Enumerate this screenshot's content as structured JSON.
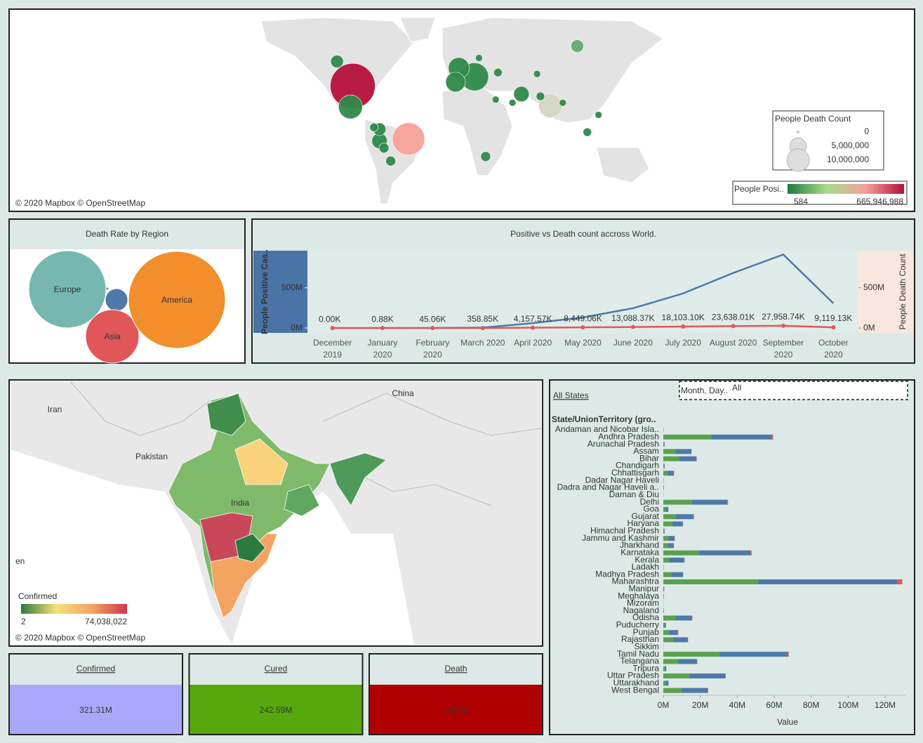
{
  "chart_data": [
    {
      "type": "bubble-map",
      "attribution": "© 2020 Mapbox © OpenStreetMap",
      "size_legend_title": "People Death Count",
      "size_ticks": [
        0,
        {
          "value": 5000000,
          "label": "5,000,000"
        },
        {
          "value": 10000000,
          "label": "10,000,000"
        }
      ],
      "color_legend_title": "People Posi..",
      "color_range": [
        584,
        {
          "value": 665946988,
          "label": "665,946,988"
        }
      ],
      "color_scale": [
        "#1e7a3c",
        "#a6dc8c",
        "#f4a09a",
        "#b5103a"
      ],
      "x": [
        -98,
        -48,
        11,
        79,
        -100,
        -3,
        -6,
        -74,
        53,
        -74,
        -112,
        103,
        -70,
        21,
        -64,
        32,
        112,
        70,
        -79,
        30,
        45,
        90,
        122,
        67,
        15
      ],
      "y": [
        39,
        -13,
        46,
        21,
        20,
        52,
        42,
        -15,
        32,
        -3,
        56,
        64,
        -22,
        -30,
        -34,
        49,
        -6,
        30,
        -1,
        27,
        24,
        24,
        12,
        48,
        58
      ],
      "values": [
        8900000,
        4420000,
        3280000,
        2300000,
        2300000,
        1740000,
        1500000,
        864000,
        864000,
        538000,
        538000,
        538000,
        290000,
        290000,
        290000,
        194000,
        194000,
        194000,
        194000,
        117000,
        117000,
        117000,
        117000,
        117000,
        117000
      ],
      "colors": [
        "#b5103a",
        "#f8a29a",
        "#2f8a4a",
        "#d6d6c6",
        "#2f8a4a",
        "#2f8a4a",
        "#2f8a4a",
        "#2f8a4a",
        "#2f8a4a",
        "#2f8a4a",
        "#2f8a4a",
        "#5fae6a",
        "#2f8a4a",
        "#2f8a4a",
        "#2f8a4a",
        "#2f8a4a",
        "#2f8a4a",
        "#2f8a4a",
        "#2f8a4a",
        "#2f8a4a",
        "#2f8a4a",
        "#2f8a4a",
        "#2f8a4a",
        "#2f8a4a",
        "#2f8a4a"
      ]
    },
    {
      "type": "packed-bubble",
      "title": "Death Rate by Region",
      "categories": [
        "Europe",
        null,
        null,
        "Asia",
        "America"
      ],
      "values": [
        30.5,
        2.6,
        0.04,
        14.6,
        48
      ],
      "colors": [
        "#76b7b2",
        "#4e79a7",
        "#59a14f",
        "#e15759",
        "#f28e2b"
      ]
    },
    {
      "type": "line",
      "title": "Positive vs Death count accross World.",
      "categories": [
        "December 2019",
        "January 2020",
        "February 2020",
        "March 2020",
        "April 2020",
        "May 2020",
        "June 2020",
        "July 2020",
        "August 2020",
        "September 2020",
        "October 2020"
      ],
      "ylim": [
        -60000000,
        960000000
      ],
      "yticks": [
        {
          "value": 0,
          "label": "0M"
        },
        {
          "value": 500000000,
          "label": "500M"
        }
      ],
      "y2lim": [
        -60000000,
        960000000
      ],
      "y2ticks": [
        {
          "value": 0,
          "label": "0M"
        },
        {
          "value": 500000000,
          "label": "500M"
        }
      ],
      "ylabel": "People Positive Cas..",
      "y2label": "People Death Count",
      "series": [
        {
          "color": "#4e79a7",
          "values": [
            0,
            10000,
            500000,
            5000000,
            61000000,
            132000000,
            246000000,
            430000000,
            684000000,
            912000000,
            307000000
          ]
        },
        {
          "color": "#e15759",
          "axis": "y2",
          "values": [
            0,
            880,
            45060,
            358850,
            4157570,
            8449060,
            13088370,
            18103100,
            23638010,
            27958740,
            9119130
          ],
          "value_labels": [
            "0.00K",
            "0.88K",
            "45.06K",
            "358.85K",
            "4,157.57K",
            "8,449.06K",
            "13,088.37K",
            "18,103.10K",
            "23,638.01K",
            "27,958.74K",
            "9,119.13K"
          ]
        }
      ]
    },
    {
      "type": "choropleth",
      "attribution": "© 2020 Mapbox © OpenStreetMap",
      "legend_title": "Confirmed",
      "color_range": [
        2,
        {
          "value": 74038022,
          "label": "74,038,022"
        }
      ],
      "color_scale": [
        "#2c7a3e",
        "#f9e07a",
        "#f4a460",
        "#d0364f"
      ],
      "places": [
        "Iran",
        "Pakistan",
        "China",
        "India",
        "en"
      ]
    },
    {
      "type": "stacked-bar",
      "title": "All States",
      "filter_label": "Month, Day..",
      "filter_value": "All",
      "ylabel": "State/UnionTerritory (gro..",
      "xlabel": "Value",
      "xlim": [
        0,
        131
      ],
      "xticks": [
        {
          "value": 0,
          "label": "0M"
        },
        {
          "value": 20,
          "label": "20M"
        },
        {
          "value": 40,
          "label": "40M"
        },
        {
          "value": 60,
          "label": "60M"
        },
        {
          "value": 80,
          "label": "80M"
        },
        {
          "value": 100,
          "label": "100M"
        },
        {
          "value": 120,
          "label": "120M"
        }
      ],
      "categories": [
        "Andaman and Nicobar Isla..",
        "Andhra Pradesh",
        "Arunachal Pradesh",
        "Assam",
        "Bihar",
        "Chandigarh",
        "Chhattisgarh",
        "Dadar Nagar Haveli",
        "Dadra and Nagar Haveli a..",
        "Daman & Diu",
        "Delhi",
        "Goa",
        "Gujarat",
        "Haryana",
        "Himachal Pradesh",
        "Jammu and Kashmir",
        "Jharkhand",
        "Karnataka",
        "Kerala",
        "Ladakh",
        "Madhya Pradesh",
        "Maharashtra",
        "Manipur",
        "Meghalaya",
        "Mizoram",
        "Nagaland",
        "Odisha",
        "Puducherry",
        "Punjab",
        "Rajasthan",
        "Sikkim",
        "Tamil Nadu",
        "Telangana",
        "Tripura",
        "Uttar Pradesh",
        "Uttarakhand",
        "West Bengal"
      ],
      "series": [
        {
          "color": "#59a14f",
          "values": [
            0.1,
            26,
            0.3,
            6.5,
            8.4,
            0.3,
            2.3,
            0.1,
            0.1,
            0.05,
            15.6,
            1.2,
            6.8,
            4.9,
            0.3,
            2.7,
            2.3,
            19.4,
            3.4,
            0.1,
            4.6,
            51.3,
            0.2,
            0.1,
            0.05,
            0.1,
            6.5,
            0.6,
            3,
            5.3,
            0.05,
            30.4,
            8,
            0.7,
            14.1,
            1.2,
            9.9
          ]
        },
        {
          "color": "#4e79a7",
          "values": [
            0.1,
            32.7,
            0.4,
            8.7,
            9.5,
            0.4,
            3.4,
            0.1,
            0.2,
            0.05,
            19,
            1.5,
            9.5,
            5.7,
            0.4,
            3.4,
            3.4,
            27.8,
            8,
            0.1,
            6.1,
            75.3,
            0.3,
            0.2,
            0.05,
            0.2,
            9.1,
            0.8,
            4.9,
            8,
            0.05,
            36.9,
            10.3,
            0.9,
            19.4,
            1.6,
            14.1
          ]
        },
        {
          "color": "#e15759",
          "values": [
            0,
            0.7,
            0,
            0.1,
            0.2,
            0,
            0.1,
            0,
            0,
            0,
            0.4,
            0.02,
            0.3,
            0.1,
            0,
            0.1,
            0.05,
            0.6,
            0.05,
            0,
            0.1,
            2.7,
            0,
            0,
            0,
            0,
            0.1,
            0.02,
            0.2,
            0.1,
            0,
            0.6,
            0.1,
            0.01,
            0.3,
            0.03,
            0.3
          ]
        }
      ]
    }
  ],
  "kpis": [
    {
      "title": "Confirmed",
      "value": "321.31M",
      "color": "#a8a9fc",
      "text_color": "#333333"
    },
    {
      "title": "Cured",
      "value": "242.59M",
      "color": "#57a80c",
      "text_color": "#333333"
    },
    {
      "title": "Death",
      "value": "5.93M",
      "color": "#b00000",
      "text_color": "#6a1010"
    }
  ]
}
